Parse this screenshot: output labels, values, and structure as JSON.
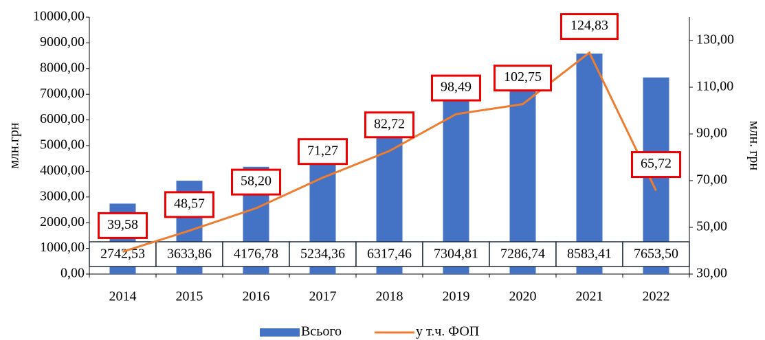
{
  "chart_data": {
    "type": "bar-line",
    "y_label": "млн.грн",
    "y2_label": "млн. грн",
    "categories": [
      "2014",
      "2015",
      "2016",
      "2017",
      "2018",
      "2019",
      "2020",
      "2021",
      "2022"
    ],
    "series": [
      {
        "name": "Всього",
        "type": "bar",
        "color": "#4472c4",
        "values": [
          2742.53,
          3633.86,
          4176.78,
          5234.36,
          6317.46,
          7304.81,
          7286.74,
          8583.41,
          7653.5
        ],
        "value_labels": [
          "2742,53",
          "3633,86",
          "4176,78",
          "5234,36",
          "6317,46",
          "7304,81",
          "7286,74",
          "8583,41",
          "7653,50"
        ]
      },
      {
        "name": "у т.ч. ФОП",
        "type": "line",
        "axis": "y2",
        "color": "#ed7d31",
        "values": [
          39.58,
          48.57,
          58.2,
          71.27,
          82.72,
          98.49,
          102.75,
          124.83,
          65.72
        ],
        "value_labels": [
          "39,58",
          "48,57",
          "58,20",
          "71,27",
          "82,72",
          "98,49",
          "102,75",
          "124,83",
          "65,72"
        ]
      }
    ],
    "ylim": [
      0,
      10000
    ],
    "yticks": [
      {
        "value": 0,
        "label": "0,00"
      },
      {
        "value": 1000,
        "label": "1000,00"
      },
      {
        "value": 2000,
        "label": "2000,00"
      },
      {
        "value": 3000,
        "label": "3000,00"
      },
      {
        "value": 4000,
        "label": "4000,00"
      },
      {
        "value": 5000,
        "label": "5000,00"
      },
      {
        "value": 6000,
        "label": "6000,00"
      },
      {
        "value": 7000,
        "label": "7000,00"
      },
      {
        "value": 8000,
        "label": "8000,00"
      },
      {
        "value": 9000,
        "label": "9000,00"
      },
      {
        "value": 10000,
        "label": "10000,00"
      }
    ],
    "y2lim": [
      30,
      140
    ],
    "y2ticks": [
      {
        "value": 30,
        "label": "30,00"
      },
      {
        "value": 50,
        "label": "50,00"
      },
      {
        "value": 70,
        "label": "70,00"
      },
      {
        "value": 90,
        "label": "90,00"
      },
      {
        "value": 110,
        "label": "110,00"
      },
      {
        "value": 130,
        "label": "130,00"
      }
    ],
    "legend": "bottom"
  }
}
